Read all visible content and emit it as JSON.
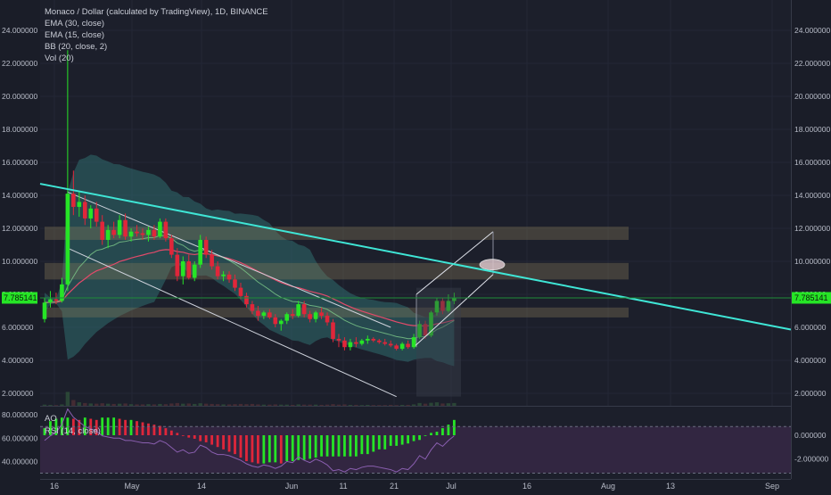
{
  "header": {
    "symbol_title": "Monaco / Dollar (calculated by TradingView), 1D, BINANCE",
    "indicators": [
      "EMA (30, close)",
      "EMA (15, close)",
      "BB (20, close, 2)",
      "Vol (20)"
    ]
  },
  "price_axis": {
    "labels": [
      "24.000000",
      "22.000000",
      "20.000000",
      "18.000000",
      "16.000000",
      "14.000000",
      "12.000000",
      "10.000000",
      "8.000000",
      "6.000000",
      "4.000000",
      "2.000000"
    ],
    "current_price": "7.785141"
  },
  "time_axis": {
    "labels": [
      "16",
      "May",
      "14",
      "Jun",
      "11",
      "21",
      "Jul",
      "16",
      "Aug",
      "13",
      "Sep"
    ]
  },
  "lower_panel": {
    "label_ao": "AO",
    "label_rsi": "RSI (14, close)",
    "left_labels": [
      "80.000000",
      "60.000000",
      "40.000000"
    ],
    "right_labels": [
      "0.000000",
      "-2.000000"
    ]
  },
  "colors": {
    "background": "#1a1d28",
    "up": "#26e526",
    "down": "#e0263a",
    "trendline": "#3fe6d6",
    "bb_fill": "#2f6b6e",
    "zone": "#8a7a5a",
    "rsi_fill": "#3a2a4a"
  },
  "chart_data": {
    "type": "candlestick",
    "title": "Monaco / Dollar (calculated by TradingView), 1D, BINANCE",
    "ylim": [
      0.8,
      25.0
    ],
    "current_price": 7.785141,
    "x_ticks": [
      "16",
      "May",
      "14",
      "Jun",
      "11",
      "21",
      "Jul",
      "16",
      "Aug",
      "13",
      "Sep"
    ],
    "candles": [
      {
        "o": 6.5,
        "h": 7.8,
        "l": 6.3,
        "c": 7.5
      },
      {
        "o": 7.5,
        "h": 8.2,
        "l": 7.2,
        "c": 7.7
      },
      {
        "o": 7.7,
        "h": 8.1,
        "l": 7.4,
        "c": 7.6
      },
      {
        "o": 7.6,
        "h": 9.0,
        "l": 7.5,
        "c": 8.6
      },
      {
        "o": 8.6,
        "h": 22.8,
        "l": 8.2,
        "c": 14.1
      },
      {
        "o": 14.1,
        "h": 15.5,
        "l": 12.8,
        "c": 13.3
      },
      {
        "o": 13.3,
        "h": 14.2,
        "l": 12.7,
        "c": 13.6
      },
      {
        "o": 13.6,
        "h": 14.0,
        "l": 12.2,
        "c": 12.6
      },
      {
        "o": 12.6,
        "h": 13.4,
        "l": 12.0,
        "c": 13.2
      },
      {
        "o": 13.2,
        "h": 13.6,
        "l": 12.1,
        "c": 12.4
      },
      {
        "o": 12.4,
        "h": 12.8,
        "l": 11.0,
        "c": 11.3
      },
      {
        "o": 11.3,
        "h": 12.2,
        "l": 10.8,
        "c": 11.9
      },
      {
        "o": 11.9,
        "h": 12.4,
        "l": 11.4,
        "c": 11.6
      },
      {
        "o": 11.6,
        "h": 12.8,
        "l": 11.4,
        "c": 12.5
      },
      {
        "o": 12.5,
        "h": 12.9,
        "l": 11.3,
        "c": 11.5
      },
      {
        "o": 11.5,
        "h": 12.0,
        "l": 11.2,
        "c": 11.8
      },
      {
        "o": 11.8,
        "h": 12.2,
        "l": 11.5,
        "c": 11.7
      },
      {
        "o": 11.7,
        "h": 12.0,
        "l": 11.3,
        "c": 11.6
      },
      {
        "o": 11.6,
        "h": 12.1,
        "l": 11.2,
        "c": 11.9
      },
      {
        "o": 11.9,
        "h": 12.2,
        "l": 11.3,
        "c": 11.5
      },
      {
        "o": 11.5,
        "h": 12.6,
        "l": 11.4,
        "c": 12.4
      },
      {
        "o": 12.4,
        "h": 12.6,
        "l": 11.2,
        "c": 11.4
      },
      {
        "o": 11.4,
        "h": 11.6,
        "l": 10.2,
        "c": 10.4
      },
      {
        "o": 10.4,
        "h": 10.8,
        "l": 8.8,
        "c": 9.1
      },
      {
        "o": 9.1,
        "h": 10.3,
        "l": 8.6,
        "c": 10.0
      },
      {
        "o": 10.0,
        "h": 10.4,
        "l": 8.9,
        "c": 9.0
      },
      {
        "o": 9.0,
        "h": 10.0,
        "l": 8.8,
        "c": 9.8
      },
      {
        "o": 9.8,
        "h": 11.6,
        "l": 9.6,
        "c": 11.3
      },
      {
        "o": 11.3,
        "h": 11.5,
        "l": 10.2,
        "c": 10.4
      },
      {
        "o": 10.4,
        "h": 10.7,
        "l": 9.5,
        "c": 9.7
      },
      {
        "o": 9.7,
        "h": 10.0,
        "l": 8.9,
        "c": 9.1
      },
      {
        "o": 9.1,
        "h": 9.4,
        "l": 8.8,
        "c": 9.2
      },
      {
        "o": 9.2,
        "h": 9.4,
        "l": 8.7,
        "c": 8.9
      },
      {
        "o": 8.9,
        "h": 9.2,
        "l": 8.2,
        "c": 8.4
      },
      {
        "o": 8.4,
        "h": 8.7,
        "l": 7.7,
        "c": 7.9
      },
      {
        "o": 7.9,
        "h": 8.1,
        "l": 7.2,
        "c": 7.4
      },
      {
        "o": 7.4,
        "h": 7.6,
        "l": 6.8,
        "c": 7.0
      },
      {
        "o": 7.0,
        "h": 7.3,
        "l": 6.4,
        "c": 6.7
      },
      {
        "o": 6.7,
        "h": 7.0,
        "l": 6.5,
        "c": 6.9
      },
      {
        "o": 6.9,
        "h": 7.1,
        "l": 6.5,
        "c": 6.6
      },
      {
        "o": 6.6,
        "h": 6.8,
        "l": 6.0,
        "c": 6.2
      },
      {
        "o": 6.2,
        "h": 6.5,
        "l": 5.8,
        "c": 6.4
      },
      {
        "o": 6.4,
        "h": 6.9,
        "l": 6.2,
        "c": 6.8
      },
      {
        "o": 6.8,
        "h": 7.1,
        "l": 6.5,
        "c": 6.7
      },
      {
        "o": 6.7,
        "h": 7.6,
        "l": 6.6,
        "c": 7.4
      },
      {
        "o": 7.4,
        "h": 7.6,
        "l": 6.6,
        "c": 6.8
      },
      {
        "o": 6.8,
        "h": 7.0,
        "l": 6.3,
        "c": 6.5
      },
      {
        "o": 6.5,
        "h": 7.0,
        "l": 6.3,
        "c": 6.9
      },
      {
        "o": 6.9,
        "h": 7.2,
        "l": 6.5,
        "c": 6.7
      },
      {
        "o": 6.7,
        "h": 6.9,
        "l": 6.1,
        "c": 6.3
      },
      {
        "o": 6.3,
        "h": 6.5,
        "l": 5.1,
        "c": 5.3
      },
      {
        "o": 5.3,
        "h": 5.6,
        "l": 4.8,
        "c": 5.2
      },
      {
        "o": 5.2,
        "h": 5.4,
        "l": 4.6,
        "c": 4.8
      },
      {
        "o": 4.8,
        "h": 5.3,
        "l": 4.6,
        "c": 5.1
      },
      {
        "o": 5.1,
        "h": 5.4,
        "l": 4.8,
        "c": 5.0
      },
      {
        "o": 5.0,
        "h": 5.3,
        "l": 4.9,
        "c": 5.2
      },
      {
        "o": 5.2,
        "h": 5.5,
        "l": 5.0,
        "c": 5.3
      },
      {
        "o": 5.3,
        "h": 5.4,
        "l": 5.1,
        "c": 5.2
      },
      {
        "o": 5.2,
        "h": 5.3,
        "l": 5.0,
        "c": 5.1
      },
      {
        "o": 5.1,
        "h": 5.3,
        "l": 4.9,
        "c": 5.0
      },
      {
        "o": 5.0,
        "h": 5.2,
        "l": 4.8,
        "c": 4.9
      },
      {
        "o": 4.9,
        "h": 5.0,
        "l": 4.6,
        "c": 4.7
      },
      {
        "o": 4.7,
        "h": 5.1,
        "l": 4.6,
        "c": 5.0
      },
      {
        "o": 5.0,
        "h": 5.2,
        "l": 4.7,
        "c": 4.8
      },
      {
        "o": 4.8,
        "h": 5.6,
        "l": 4.7,
        "c": 5.4
      },
      {
        "o": 5.4,
        "h": 6.4,
        "l": 5.3,
        "c": 6.2
      },
      {
        "o": 6.2,
        "h": 6.4,
        "l": 5.3,
        "c": 5.5
      },
      {
        "o": 5.5,
        "h": 7.0,
        "l": 5.4,
        "c": 6.9
      },
      {
        "o": 6.9,
        "h": 7.8,
        "l": 6.7,
        "c": 7.6
      },
      {
        "o": 7.6,
        "h": 7.8,
        "l": 6.8,
        "c": 7.0
      },
      {
        "o": 7.0,
        "h": 8.0,
        "l": 6.9,
        "c": 7.6
      },
      {
        "o": 7.6,
        "h": 8.1,
        "l": 7.4,
        "c": 7.79
      }
    ],
    "resistance_zones": [
      [
        11.3,
        12.1
      ],
      [
        8.9,
        9.9
      ],
      [
        6.6,
        7.2
      ]
    ],
    "descending_trendline": [
      [
        0,
        14.7
      ],
      [
        120,
        6.5
      ]
    ],
    "channel_upper": [
      [
        4,
        14.2
      ],
      [
        60,
        6.0
      ]
    ],
    "channel_lower": [
      [
        4,
        10.8
      ],
      [
        61,
        1.8
      ]
    ],
    "ao": [
      0.6,
      1.2,
      1.4,
      1.5,
      1.5,
      1.4,
      1.3,
      1.5,
      1.4,
      1.3,
      1.5,
      1.5,
      1.5,
      1.4,
      1.3,
      1.3,
      1.2,
      1.1,
      1.0,
      0.9,
      0.8,
      0.6,
      0.4,
      0.2,
      0.0,
      -0.2,
      -0.3,
      -0.5,
      -0.6,
      -0.8,
      -1.0,
      -1.2,
      -1.4,
      -1.6,
      -1.9,
      -2.2,
      -2.3,
      -2.4,
      -2.4,
      -2.3,
      -2.3,
      -2.4,
      -2.2,
      -2.2,
      -2.1,
      -2.1,
      -2.0,
      -1.9,
      -1.8,
      -1.8,
      -1.8,
      -1.8,
      -1.8,
      -1.8,
      -1.8,
      -1.6,
      -1.6,
      -1.4,
      -1.2,
      -1.2,
      -0.9,
      -0.9,
      -0.8,
      -0.7,
      -0.5,
      -0.4,
      0.0,
      0.2,
      0.3,
      0.6,
      0.9,
      1.3
    ],
    "rsi": [
      58,
      62,
      65,
      72,
      85,
      78,
      74,
      70,
      68,
      66,
      62,
      61,
      60,
      60,
      58,
      58,
      57,
      56,
      56,
      55,
      58,
      56,
      52,
      48,
      50,
      47,
      48,
      54,
      52,
      48,
      46,
      46,
      45,
      43,
      41,
      38,
      36,
      35,
      37,
      36,
      34,
      36,
      40,
      39,
      44,
      41,
      39,
      42,
      40,
      37,
      32,
      33,
      31,
      34,
      33,
      35,
      36,
      36,
      35,
      34,
      33,
      31,
      34,
      33,
      38,
      45,
      42,
      50,
      56,
      53,
      58,
      62
    ],
    "volume": [
      0.5,
      0.4,
      0.3,
      0.6,
      6.0,
      2.5,
      1.5,
      1.2,
      1.0,
      0.9,
      1.1,
      0.9,
      0.8,
      0.9,
      1.0,
      0.7,
      0.6,
      0.6,
      0.7,
      0.6,
      0.8,
      0.7,
      1.0,
      1.2,
      0.9,
      1.0,
      0.8,
      1.1,
      0.9,
      0.8,
      0.7,
      0.6,
      0.6,
      0.7,
      0.8,
      0.7,
      0.8,
      0.6,
      0.5,
      0.5,
      0.6,
      0.5,
      0.5,
      0.4,
      0.6,
      0.5,
      0.5,
      0.5,
      0.4,
      0.5,
      0.7,
      0.5,
      0.6,
      0.4,
      0.4,
      0.3,
      0.4,
      0.3,
      0.3,
      0.3,
      0.4,
      0.3,
      0.4,
      0.4,
      0.6,
      1.2,
      0.9,
      1.3,
      1.5,
      1.0,
      1.1,
      1.2
    ]
  }
}
